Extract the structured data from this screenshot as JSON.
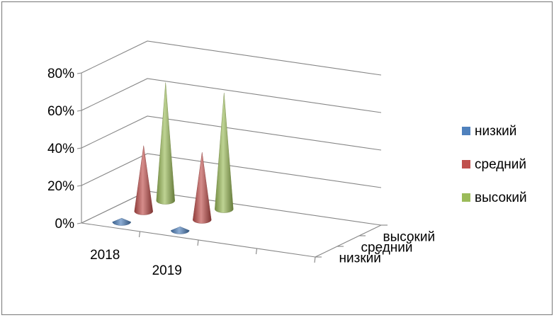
{
  "chart_data": {
    "type": "bar",
    "style": "3d-cone",
    "categories": [
      "2018",
      "2019"
    ],
    "depth_categories": [
      "низкий",
      "средний",
      "высокий"
    ],
    "series": [
      {
        "name": "низкий",
        "color": "#4F81BD",
        "values": [
          2,
          2
        ]
      },
      {
        "name": "средний",
        "color": "#C0504D",
        "values": [
          35,
          36
        ]
      },
      {
        "name": "высокий",
        "color": "#9BBB59",
        "values": [
          63,
          62
        ]
      }
    ],
    "y_ticks": [
      "0%",
      "20%",
      "40%",
      "60%",
      "80%"
    ],
    "ylim": [
      0,
      80
    ],
    "grid": true,
    "legend_position": "right"
  }
}
